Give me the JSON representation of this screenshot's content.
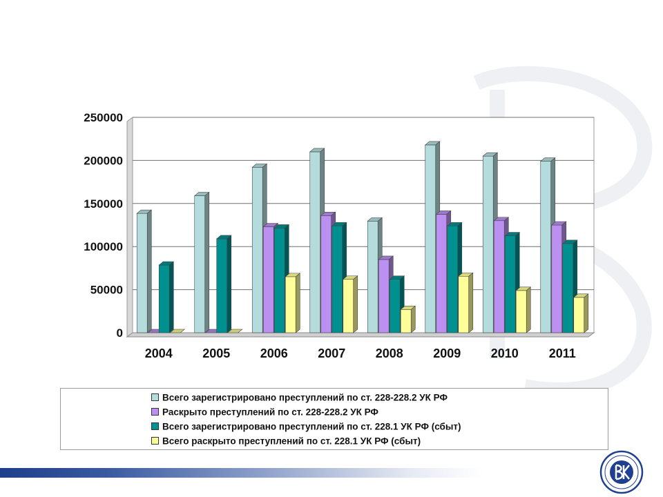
{
  "chart_data": {
    "type": "bar",
    "categories": [
      "2004",
      "2005",
      "2006",
      "2007",
      "2008",
      "2009",
      "2010",
      "2011"
    ],
    "series": [
      {
        "name": "Всего зарегистрировано преступлений по ст. 228-228.2 УК РФ",
        "color": "#b4dcdc",
        "values": [
          138500,
          159000,
          192000,
          210000,
          129500,
          218000,
          205000,
          199000
        ]
      },
      {
        "name": "Раскрыто преступлений по ст. 228-228.2 УК РФ",
        "color": "#bb90f0",
        "values": [
          0,
          0,
          123000,
          136000,
          85000,
          137500,
          130000,
          125000
        ]
      },
      {
        "name": "Всего зарегистрировано преступлений по ст. 228.1 УК РФ (сбыт)",
        "color": "#009090",
        "values": [
          78500,
          109000,
          121500,
          124000,
          62000,
          124000,
          112500,
          103500
        ]
      },
      {
        "name": "Всего раскрыто преступлений по ст. 228.1 УК РФ (сбыт)",
        "color": "#ffff99",
        "values": [
          0,
          0,
          65000,
          62000,
          27000,
          65500,
          49000,
          41000
        ]
      }
    ],
    "y_ticks": [
      "0",
      "50000",
      "100000",
      "150000",
      "200000",
      "250000"
    ],
    "ylim": [
      0,
      250000
    ],
    "grid": true,
    "legend_position": "bottom",
    "title": "",
    "xlabel": "",
    "ylabel": ""
  }
}
